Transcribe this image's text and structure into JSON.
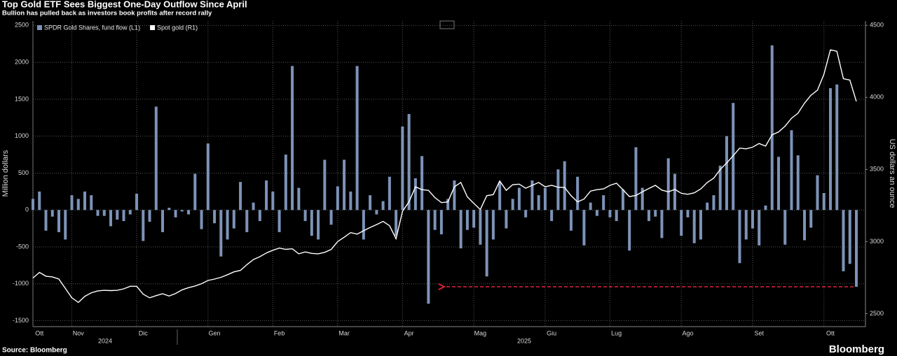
{
  "chart_data": {
    "type": "bar_line",
    "title": "Top Gold ETF Sees Biggest One-Day Outflow Since April",
    "subtitle": "Bullion has pulled back as investors book profits after record rally",
    "ylabel": "Million dollars",
    "y2label": "US dollars an ounce",
    "source": "Source: Bloomberg",
    "brand": "Bloomberg",
    "years": [
      "2024",
      "2025"
    ],
    "categories": [
      null,
      "Ott",
      null,
      null,
      null,
      null,
      null,
      "Nov",
      null,
      null,
      null,
      null,
      null,
      null,
      null,
      null,
      null,
      "Dic",
      null,
      null,
      null,
      null,
      null,
      null,
      null,
      null,
      null,
      null,
      "Gen",
      null,
      null,
      null,
      null,
      null,
      null,
      null,
      null,
      null,
      "Feb",
      null,
      null,
      null,
      null,
      null,
      null,
      null,
      null,
      null,
      "Mar",
      null,
      null,
      null,
      null,
      null,
      null,
      null,
      null,
      null,
      "Apr",
      null,
      null,
      null,
      null,
      null,
      null,
      null,
      null,
      null,
      null,
      "Mag",
      null,
      null,
      null,
      null,
      null,
      null,
      null,
      null,
      null,
      null,
      "Giu",
      null,
      null,
      null,
      null,
      null,
      null,
      null,
      null,
      null,
      "Lug",
      null,
      null,
      null,
      null,
      null,
      null,
      null,
      null,
      null,
      null,
      "Ago",
      null,
      null,
      null,
      null,
      null,
      null,
      null,
      null,
      null,
      null,
      "Set",
      null,
      null,
      null,
      null,
      null,
      null,
      null,
      null,
      null,
      null,
      "Ott",
      null,
      null,
      null,
      null
    ],
    "series": [
      {
        "name": "SPDR Gold Shares, fund flow (L1)",
        "color": "#7d93b8",
        "axis": "y",
        "values": [
          150,
          250,
          -280,
          -90,
          -300,
          -400,
          200,
          150,
          250,
          200,
          -80,
          -80,
          -220,
          -130,
          -150,
          -60,
          220,
          -420,
          -160,
          1400,
          -300,
          30,
          -100,
          -20,
          -60,
          490,
          -260,
          900,
          -180,
          -630,
          -400,
          -250,
          380,
          -300,
          100,
          -150,
          400,
          250,
          -300,
          750,
          1950,
          300,
          -150,
          -350,
          -400,
          680,
          -200,
          320,
          680,
          250,
          1950,
          -400,
          200,
          -60,
          120,
          450,
          -350,
          1130,
          1300,
          430,
          730,
          -1270,
          -270,
          -330,
          150,
          400,
          -520,
          -270,
          -240,
          -470,
          -900,
          -400,
          380,
          -250,
          150,
          300,
          -100,
          400,
          200,
          300,
          -150,
          550,
          660,
          -280,
          450,
          -480,
          100,
          -80,
          200,
          -100,
          -150,
          280,
          -550,
          850,
          300,
          -150,
          -90,
          -380,
          700,
          490,
          -350,
          -100,
          -450,
          -400,
          100,
          200,
          600,
          1000,
          1450,
          -720,
          -400,
          -250,
          -480,
          60,
          2230,
          720,
          -470,
          1080,
          740,
          -410,
          -240,
          470,
          230,
          1650,
          1700,
          -830,
          -730,
          -1040
        ]
      },
      {
        "name": "Spot gold (R1)",
        "color": "#ffffff",
        "axis": "y2",
        "values": [
          2747,
          2786,
          2760,
          2755,
          2740,
          2675,
          2610,
          2578,
          2620,
          2645,
          2658,
          2662,
          2660,
          2662,
          2672,
          2690,
          2690,
          2635,
          2610,
          2625,
          2638,
          2622,
          2640,
          2665,
          2680,
          2692,
          2708,
          2730,
          2740,
          2752,
          2770,
          2790,
          2800,
          2840,
          2875,
          2895,
          2921,
          2940,
          2955,
          2946,
          2950,
          2915,
          2928,
          2918,
          2915,
          2925,
          2945,
          3000,
          3030,
          3062,
          3052,
          3075,
          3098,
          3118,
          3140,
          3110,
          3020,
          3210,
          3275,
          3380,
          3360,
          3355,
          3305,
          3270,
          3275,
          3380,
          3410,
          3310,
          3265,
          3222,
          3318,
          3326,
          3420,
          3355,
          3395,
          3398,
          3370,
          3390,
          3410,
          3380,
          3390,
          3377,
          3375,
          3318,
          3275,
          3295,
          3350,
          3360,
          3365,
          3390,
          3405,
          3360,
          3312,
          3320,
          3345,
          3368,
          3390,
          3357,
          3345,
          3362,
          3335,
          3328,
          3338,
          3365,
          3410,
          3440,
          3500,
          3545,
          3595,
          3648,
          3643,
          3655,
          3680,
          3662,
          3740,
          3760,
          3800,
          3855,
          3890,
          3960,
          4015,
          4050,
          4160,
          4330,
          4320,
          4130,
          4120,
          3972
        ]
      }
    ],
    "ylim": [
      -1580,
      2560
    ],
    "yticks": [
      -1500,
      -1000,
      -500,
      0,
      500,
      1000,
      1500,
      2000,
      2500
    ],
    "y2lim": [
      2410,
      4530
    ],
    "y2ticks": [
      2500,
      3000,
      3500,
      4000,
      4500
    ],
    "grid": true,
    "legend": "top-left"
  }
}
